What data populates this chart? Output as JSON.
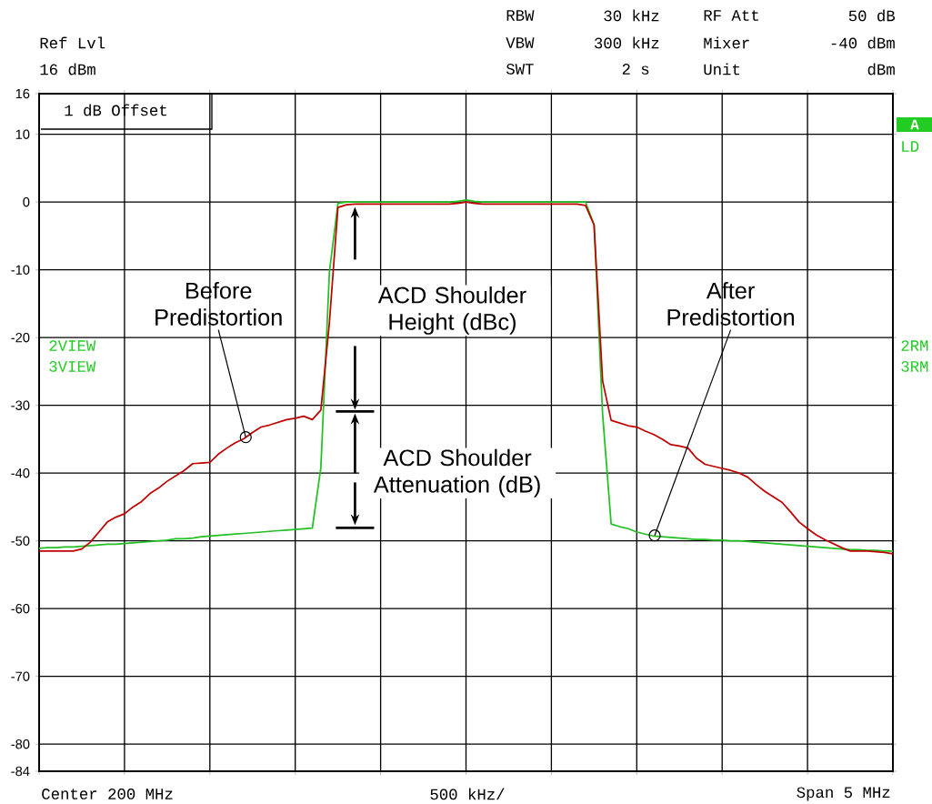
{
  "chart_data": {
    "type": "line",
    "categories": [
      null,
      null,
      null,
      null,
      null,
      null,
      null,
      null,
      null,
      null,
      null,
      null,
      null,
      null,
      null,
      null,
      null,
      null,
      null,
      null,
      null,
      null,
      null,
      null,
      null,
      null,
      null,
      null,
      null,
      null,
      null,
      null,
      null,
      null,
      null,
      null,
      null,
      null,
      null,
      null,
      null,
      null,
      null,
      null,
      null,
      null,
      null,
      null,
      null,
      null,
      null,
      null,
      null,
      null,
      null,
      null,
      null,
      null,
      null,
      null,
      null,
      null,
      null,
      null,
      null,
      null,
      null,
      null,
      null,
      null,
      null,
      null,
      null,
      null,
      null,
      null,
      null,
      null,
      null,
      null,
      null,
      null,
      null,
      null,
      null,
      null,
      null,
      null,
      null,
      null,
      null,
      null,
      null,
      null,
      null,
      null,
      null,
      null,
      null,
      null,
      null
    ],
    "ylim": [
      -84,
      16
    ],
    "yticks": [
      16,
      10,
      0,
      -10,
      -20,
      -30,
      -40,
      -50,
      -60,
      -70,
      -80,
      -84
    ],
    "grid": true,
    "series": [
      {
        "color": "#22c022",
        "values": [
          -51.1,
          -51.0,
          -51.0,
          -50.9,
          -50.9,
          -50.8,
          -50.7,
          -50.6,
          -50.5,
          -50.5,
          -50.4,
          -50.3,
          -50.2,
          -50.1,
          -50.0,
          -49.9,
          -49.7,
          -49.7,
          -49.6,
          -49.4,
          -49.3,
          -49.2,
          -49.1,
          -49.0,
          -48.9,
          -48.8,
          -48.7,
          -48.6,
          -48.5,
          -48.4,
          -48.3,
          -48.2,
          -48.1,
          -39.2,
          -10.3,
          -0.2,
          0,
          0,
          0,
          0,
          0,
          0,
          0,
          0,
          0,
          0,
          0,
          0,
          0,
          0.1,
          0.3,
          0.1,
          0,
          0,
          0,
          0,
          0,
          0,
          0,
          0,
          0,
          0,
          0,
          0,
          0,
          -3.3,
          -31.3,
          -47.5,
          -47.9,
          -48.2,
          -48.7,
          -49.0,
          -49.3,
          -49.4,
          -49.5,
          -49.6,
          -49.7,
          -49.8,
          -49.8,
          -49.9,
          -49.9,
          -50.0,
          -50.0,
          -50.1,
          -50.2,
          -50.3,
          -50.4,
          -50.5,
          -50.6,
          -50.7,
          -50.8,
          -50.9,
          -51.0,
          -51.1,
          -51.2,
          -51.3,
          -51.3,
          -51.4,
          -51.4,
          -51.5,
          -51.5
        ]
      },
      {
        "color": "#c00000",
        "values": [
          -51.5,
          -51.5,
          -51.5,
          -51.5,
          -51.5,
          -51.2,
          -50.2,
          -48.7,
          -47.2,
          -46.5,
          -46.0,
          -45.0,
          -44.2,
          -43.0,
          -42.2,
          -41.2,
          -40.4,
          -39.6,
          -38.6,
          -38.5,
          -38.4,
          -37.2,
          -36.3,
          -35.5,
          -34.9,
          -34.0,
          -33.2,
          -32.9,
          -32.5,
          -32.1,
          -31.9,
          -31.6,
          -32.1,
          -30.7,
          -17.8,
          -0.8,
          -0.4,
          -0.3,
          -0.3,
          -0.3,
          -0.3,
          -0.3,
          -0.3,
          -0.3,
          -0.3,
          -0.3,
          -0.3,
          -0.3,
          -0.3,
          -0.2,
          0,
          -0.2,
          -0.3,
          -0.3,
          -0.3,
          -0.3,
          -0.3,
          -0.3,
          -0.3,
          -0.3,
          -0.3,
          -0.3,
          -0.3,
          -0.3,
          -0.5,
          -3.4,
          -26.4,
          -32.2,
          -32.6,
          -33.0,
          -33.2,
          -33.8,
          -34.3,
          -35.0,
          -35.8,
          -36.0,
          -36.3,
          -37.8,
          -38.7,
          -39.0,
          -39.3,
          -39.6,
          -40.0,
          -40.6,
          -41.7,
          -42.7,
          -43.5,
          -44.3,
          -45.7,
          -47.2,
          -48.2,
          -49.1,
          -49.8,
          -50.4,
          -51.0,
          -51.5,
          -51.5,
          -51.5,
          -51.6,
          -51.7,
          -51.9
        ]
      }
    ],
    "annotations": [
      "RBW",
      "30 kHz",
      "RF Att",
      "50 dB",
      "Ref Lvl",
      "VBW",
      "300 kHz",
      "Mixer",
      "-40 dBm",
      "16 dBm",
      "SWT",
      "2 s",
      "Unit",
      "dBm",
      "1 dB Offset",
      "A",
      "LD",
      "2VIEW",
      "3VIEW",
      "2RM",
      "3RM",
      "Center 200 MHz",
      "500 kHz/",
      "Span 5 MHz",
      "Before Predistortion",
      "After Predistortion",
      "ACD Shoulder Height (dBc)",
      "ACD Shoulder Attenuation (dB)"
    ]
  }
}
